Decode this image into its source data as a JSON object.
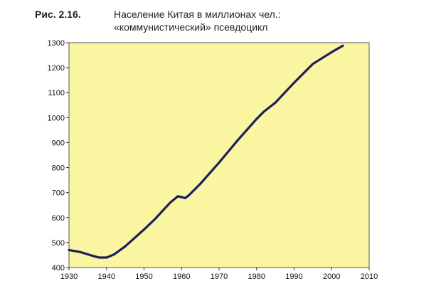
{
  "figure": {
    "label": "Рис. 2.16.",
    "title_line1": "Население Китая в миллионах чел.:",
    "title_line2": "«коммунистический» псевдоцикл"
  },
  "colors": {
    "plot_bg": "#FAF5A0",
    "line": "#1B1F5C",
    "border": "#555555"
  },
  "chart_data": {
    "type": "line",
    "title": "Население Китая в миллионах чел.: «коммунистический» псевдоцикл",
    "xlabel": "",
    "ylabel": "",
    "xlim": [
      1930,
      2010
    ],
    "ylim": [
      400,
      1300
    ],
    "xticks": [
      1930,
      1940,
      1950,
      1960,
      1970,
      1980,
      1990,
      2000,
      2010
    ],
    "yticks": [
      400,
      500,
      600,
      700,
      800,
      900,
      1000,
      1100,
      1200,
      1300
    ],
    "grid": false,
    "legend": "none",
    "series": [
      {
        "x": [
          1930,
          1933,
          1936,
          1938,
          1940,
          1942,
          1945,
          1948,
          1950,
          1953,
          1955,
          1957,
          1959,
          1960,
          1961,
          1962,
          1965,
          1970,
          1975,
          1980,
          1982,
          1985,
          1990,
          1995,
          2000,
          2003
        ],
        "y": [
          470,
          462,
          448,
          440,
          440,
          452,
          485,
          525,
          552,
          595,
          628,
          660,
          685,
          682,
          678,
          690,
          735,
          820,
          910,
          995,
          1025,
          1060,
          1140,
          1215,
          1262,
          1288
        ]
      }
    ]
  }
}
